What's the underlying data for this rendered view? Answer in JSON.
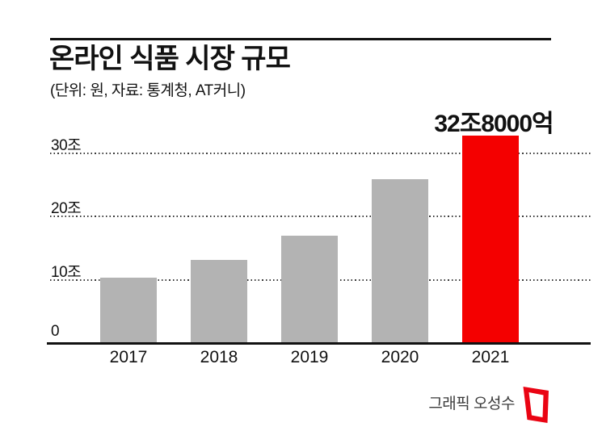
{
  "header": {
    "title": "온라인 식품 시장 규모",
    "subtitle": "(단위: 원, 자료: 통계청, AT커니)"
  },
  "chart_data": {
    "type": "bar",
    "title": "온라인 식품 시장 규모",
    "subtitle": "(단위: 원, 자료: 통계청, AT커니)",
    "categories": [
      "2017",
      "2018",
      "2019",
      "2020",
      "2021"
    ],
    "values": [
      10.4,
      13.2,
      17.0,
      25.9,
      32.8
    ],
    "unit": "조 원",
    "xlabel": "",
    "ylabel": "",
    "ylim": [
      0,
      33
    ],
    "yticks": [
      {
        "value": 0,
        "label": "0"
      },
      {
        "value": 10,
        "label": "10조"
      },
      {
        "value": 20,
        "label": "20조"
      },
      {
        "value": 30,
        "label": "30조"
      }
    ],
    "grid": "horizontal-dotted",
    "legend": "none",
    "bar_colors": [
      "#b3b3b3",
      "#b3b3b3",
      "#b3b3b3",
      "#b3b3b3",
      "#f40000"
    ],
    "annotation": {
      "text": "32조8000억",
      "target": "2021"
    }
  },
  "footer": {
    "credit": "그래픽 오성수",
    "logo_name": "asia-economy-logo"
  },
  "colors": {
    "accent_red": "#f40000",
    "bar_gray": "#b3b3b3",
    "text": "#111111",
    "credit_text": "#3a3a3a",
    "logo_red": "#ea0413"
  }
}
